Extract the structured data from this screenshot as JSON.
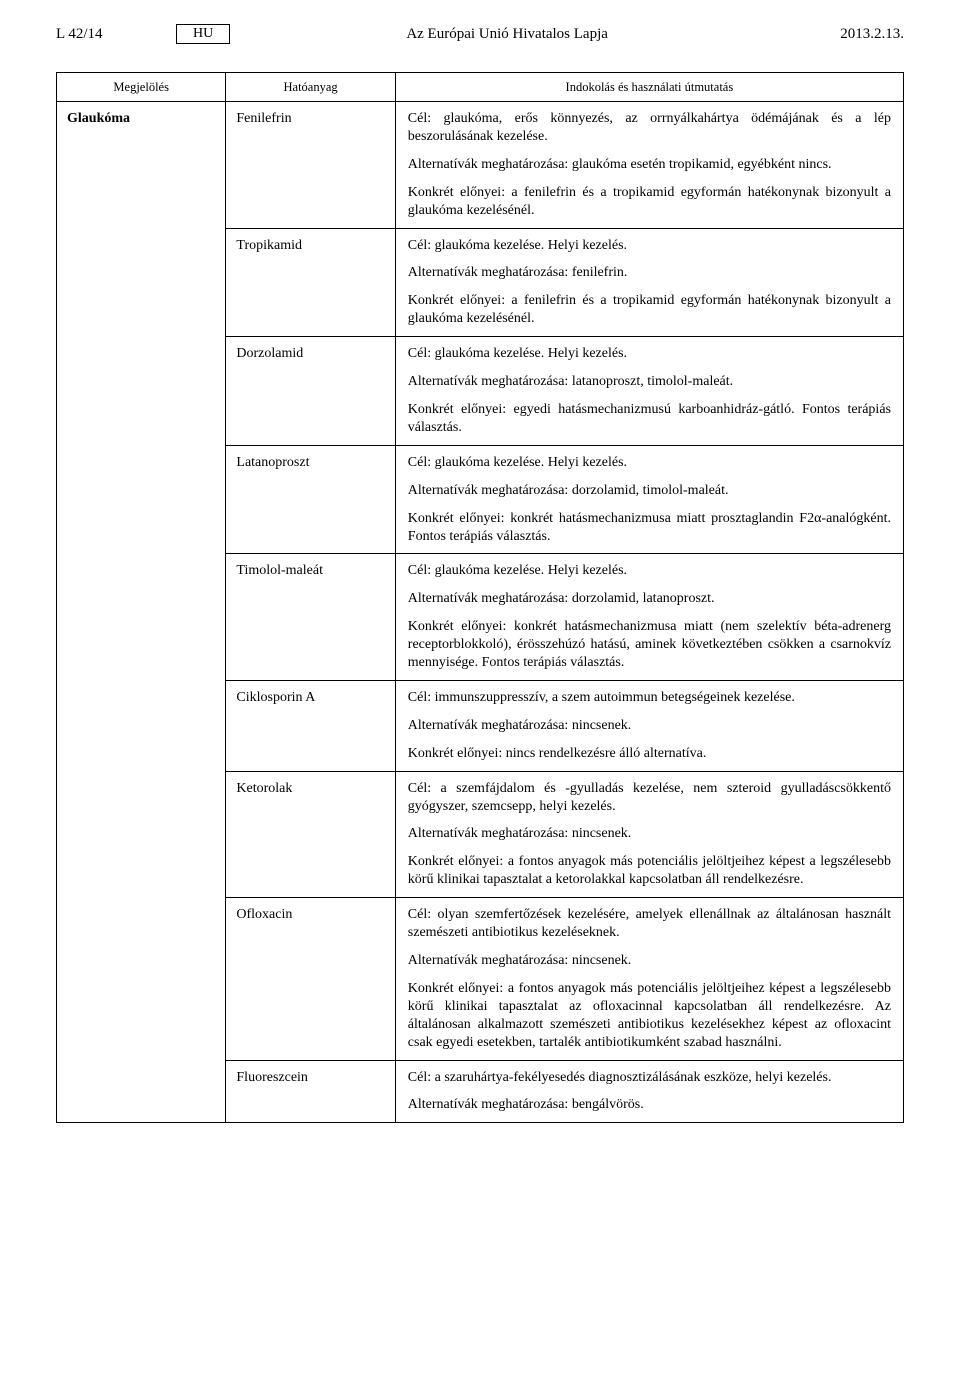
{
  "header": {
    "left": "L 42/14",
    "lang": "HU",
    "center": "Az Európai Unió Hivatalos Lapja",
    "right": "2013.2.13."
  },
  "table": {
    "headers": {
      "c1": "Megjelölés",
      "c2": "Hatóanyag",
      "c3": "Indokolás és használati útmutatás"
    },
    "designation": "Glaukóma",
    "rows": [
      {
        "substance": "Fenilefrin",
        "paras": [
          "Cél: glaukóma, erős könnyezés, az orrnyálkahártya ödémájának és a lép beszorulásának kezelése.",
          "Alternatívák meghatározása: glaukóma esetén tropikamid, egyébként nincs.",
          "Konkrét előnyei: a fenilefrin és a tropikamid egyformán hatékonynak bizonyult a glaukóma kezelésénél."
        ]
      },
      {
        "substance": "Tropikamid",
        "paras": [
          "Cél: glaukóma kezelése. Helyi kezelés.",
          "Alternatívák meghatározása: fenilefrin.",
          "Konkrét előnyei: a fenilefrin és a tropikamid egyformán hatékonynak bizonyult a glaukóma kezelésénél."
        ]
      },
      {
        "substance": "Dorzolamid",
        "paras": [
          "Cél: glaukóma kezelése. Helyi kezelés.",
          "Alternatívák meghatározása: latanoproszt, timolol-maleát.",
          "Konkrét előnyei: egyedi hatásmechanizmusú karboanhidráz-gátló. Fontos terápiás választás."
        ]
      },
      {
        "substance": "Latanoproszt",
        "paras": [
          "Cél: glaukóma kezelése. Helyi kezelés.",
          "Alternatívák meghatározása: dorzolamid, timolol-maleát.",
          "Konkrét előnyei: konkrét hatásmechanizmusa miatt prosztaglandin F2α-analógként. Fontos terápiás választás."
        ]
      },
      {
        "substance": "Timolol-maleát",
        "paras": [
          "Cél: glaukóma kezelése. Helyi kezelés.",
          "Alternatívák meghatározása: dorzolamid, latanoproszt.",
          "Konkrét előnyei: konkrét hatásmechanizmusa miatt (nem szelektív béta-adrenerg receptorblokkoló), érösszehúzó hatású, aminek következtében csökken a csarnokvíz mennyisége. Fontos terápiás választás."
        ]
      },
      {
        "substance": "Ciklosporin A",
        "paras": [
          "Cél: immunszuppresszív, a szem autoimmun betegségeinek kezelése.",
          "Alternatívák meghatározása: nincsenek.",
          "Konkrét előnyei: nincs rendelkezésre álló alternatíva."
        ]
      },
      {
        "substance": "Ketorolak",
        "paras": [
          "Cél: a szemfájdalom és -gyulladás kezelése, nem szteroid gyulladáscsökkentő gyógyszer, szemcsepp, helyi kezelés.",
          "Alternatívák meghatározása: nincsenek.",
          "Konkrét előnyei: a fontos anyagok más potenciális jelöltjeihez képest a legszélesebb körű klinikai tapasztalat a ketorolakkal kapcsolatban áll rendelkezésre."
        ]
      },
      {
        "substance": "Ofloxacin",
        "paras": [
          "Cél: olyan szemfertőzések kezelésére, amelyek ellenállnak az általánosan használt szemészeti antibiotikus kezeléseknek.",
          "Alternatívák meghatározása: nincsenek.",
          "Konkrét előnyei: a fontos anyagok más potenciális jelöltjeihez képest a legszélesebb körű klinikai tapasztalat az ofloxacinnal kapcsolatban áll rendelkezésre. Az általánosan alkalmazott szemészeti antibiotikus kezelésekhez képest az ofloxacint csak egyedi esetekben, tartalék antibiotikumként szabad használni."
        ]
      },
      {
        "substance": "Fluoreszcein",
        "paras": [
          "Cél: a szaruhártya-fekélyesedés diagnosztizálásának eszköze, helyi kezelés.",
          "Alternatívák meghatározása: bengálvörös."
        ]
      }
    ]
  }
}
